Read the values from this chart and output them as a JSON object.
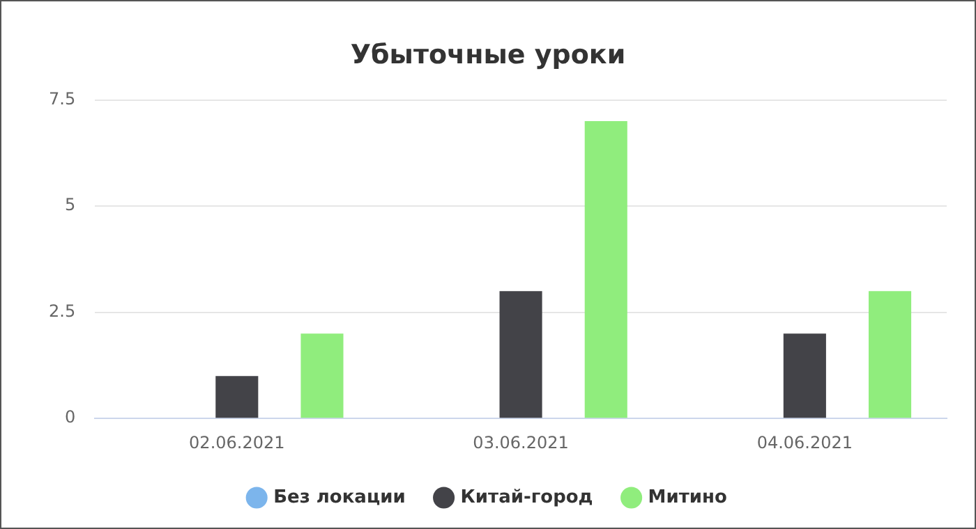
{
  "chart_data": {
    "type": "bar",
    "title": "Убыточные уроки",
    "categories": [
      "02.06.2021",
      "03.06.2021",
      "04.06.2021"
    ],
    "series": [
      {
        "name": "Без локации",
        "color": "#7cb5ec",
        "values": [
          0,
          0,
          0
        ]
      },
      {
        "name": "Китай-город",
        "color": "#434348",
        "values": [
          1,
          3,
          2
        ]
      },
      {
        "name": "Митино",
        "color": "#90ed7d",
        "values": [
          2,
          7,
          3
        ]
      }
    ],
    "ylim": [
      0,
      7.5
    ],
    "yticks": [
      0,
      2.5,
      5,
      7.5
    ],
    "grid": "y",
    "legend": "bottom"
  }
}
